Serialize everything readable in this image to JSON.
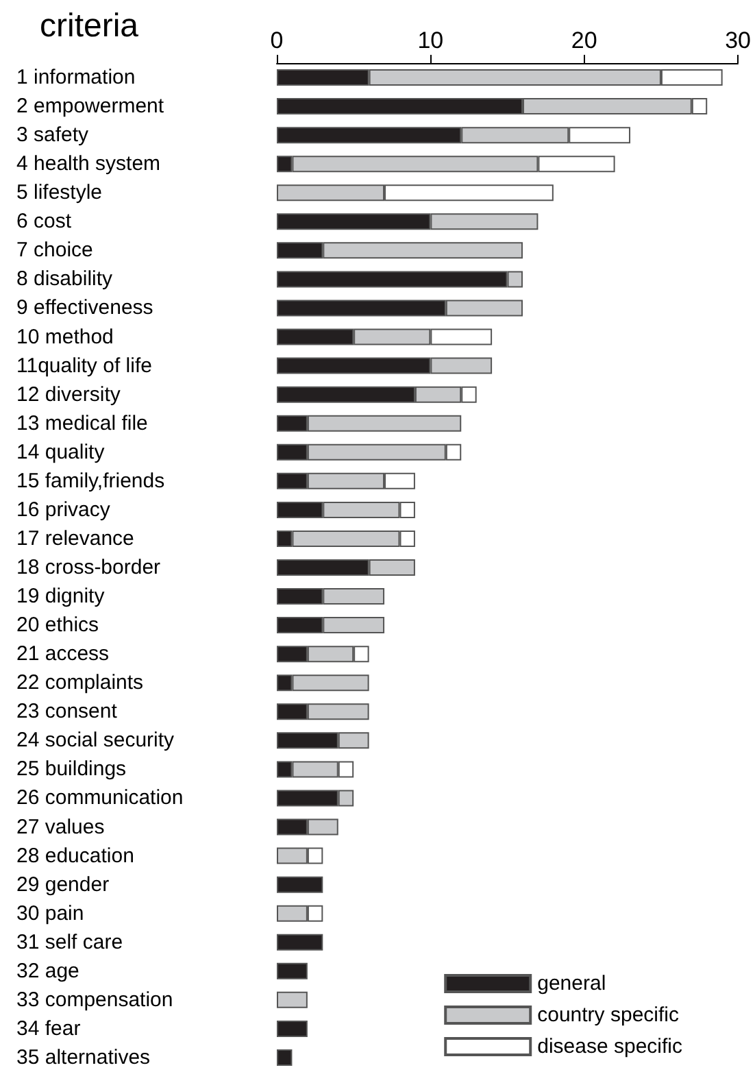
{
  "chart_data": {
    "type": "bar",
    "orientation": "horizontal",
    "stacked": true,
    "title": "criteria",
    "categories": [
      "1 information",
      "2 empowerment",
      "3 safety",
      "4 health system",
      "5 lifestyle",
      "6 cost",
      "7 choice",
      "8 disability",
      "9 effectiveness",
      "10 method",
      "11quality of life",
      "12 diversity",
      "13 medical file",
      "14 quality",
      "15 family,friends",
      "16 privacy",
      "17 relevance",
      "18 cross-border",
      "19 dignity",
      "20 ethics",
      "21 access",
      "22 complaints",
      "23 consent",
      "24 social security",
      "25 buildings",
      "26 communication",
      "27 values",
      "28 education",
      "29 gender",
      "30 pain",
      "31 self care",
      "32 age",
      "33 compensation",
      "34 fear",
      "35 alternatives"
    ],
    "series": [
      {
        "name": "general",
        "color": "#231f20",
        "values": [
          6,
          16,
          12,
          1,
          0,
          10,
          3,
          15,
          11,
          5,
          10,
          9,
          2,
          2,
          2,
          3,
          1,
          6,
          3,
          3,
          2,
          1,
          2,
          4,
          1,
          4,
          2,
          0,
          3,
          0,
          3,
          2,
          0,
          2,
          1
        ]
      },
      {
        "name": "country specific",
        "color": "#c8c9cb",
        "values": [
          19,
          11,
          7,
          16,
          7,
          7,
          13,
          1,
          5,
          5,
          4,
          3,
          10,
          9,
          5,
          5,
          7,
          3,
          4,
          4,
          3,
          5,
          4,
          2,
          3,
          1,
          2,
          2,
          0,
          2,
          0,
          0,
          2,
          0,
          0
        ]
      },
      {
        "name": "disease specific",
        "color": "#ffffff",
        "values": [
          4,
          1,
          4,
          5,
          11,
          0,
          0,
          0,
          0,
          4,
          0,
          1,
          0,
          1,
          2,
          1,
          1,
          0,
          0,
          0,
          1,
          0,
          0,
          0,
          1,
          0,
          0,
          1,
          0,
          1,
          0,
          0,
          0,
          0,
          0
        ]
      }
    ],
    "xlim": [
      0,
      30
    ],
    "xticks": [
      0,
      10,
      20,
      30
    ],
    "grid": false,
    "legend": "bottom right"
  }
}
